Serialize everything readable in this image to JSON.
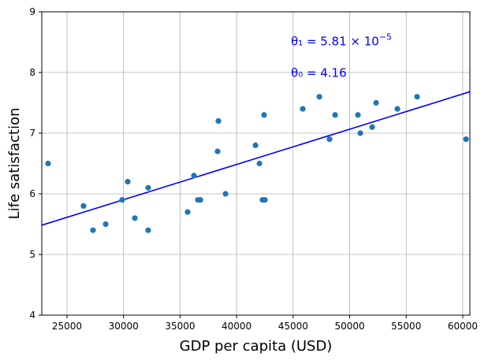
{
  "chart_data": {
    "type": "scatter",
    "xlabel": "GDP per capita (USD)",
    "ylabel": "Life satisfaction",
    "xlim": [
      22770,
      60630
    ],
    "ylim": [
      4,
      9
    ],
    "xticks": [
      25000,
      30000,
      35000,
      40000,
      45000,
      50000,
      55000,
      60000
    ],
    "yticks": [
      4,
      5,
      6,
      7,
      8,
      9
    ],
    "grid": true,
    "point_color": "#1f77b4",
    "line_color": "#0000ff",
    "points": [
      [
        23330,
        6.5
      ],
      [
        26460,
        5.8
      ],
      [
        27300,
        5.4
      ],
      [
        28420,
        5.5
      ],
      [
        29880,
        5.9
      ],
      [
        30370,
        6.2
      ],
      [
        31000,
        5.6
      ],
      [
        32180,
        6.1
      ],
      [
        32180,
        5.4
      ],
      [
        35670,
        5.7
      ],
      [
        36230,
        6.3
      ],
      [
        36580,
        5.9
      ],
      [
        36790,
        5.9
      ],
      [
        38320,
        6.7
      ],
      [
        38390,
        7.2
      ],
      [
        39020,
        6.0
      ],
      [
        41670,
        6.8
      ],
      [
        42020,
        6.5
      ],
      [
        42290,
        5.9
      ],
      [
        42500,
        5.9
      ],
      [
        42430,
        7.3
      ],
      [
        45850,
        7.4
      ],
      [
        47320,
        7.6
      ],
      [
        48220,
        6.9
      ],
      [
        48710,
        7.3
      ],
      [
        50730,
        7.3
      ],
      [
        50940,
        7.0
      ],
      [
        51990,
        7.1
      ],
      [
        52340,
        7.5
      ],
      [
        54220,
        7.4
      ],
      [
        55960,
        7.6
      ],
      [
        60290,
        6.9
      ]
    ],
    "fit_line": {
      "theta0": 4.16,
      "theta1": 5.81e-05
    },
    "annotations": [
      {
        "text_main": "θ₁ = 5.81 × 10",
        "text_sup": "−5",
        "x": 44800,
        "y": 8.45
      },
      {
        "text_main": "θ₀ = 4.16",
        "text_sup": "",
        "x": 44800,
        "y": 7.93
      }
    ]
  }
}
